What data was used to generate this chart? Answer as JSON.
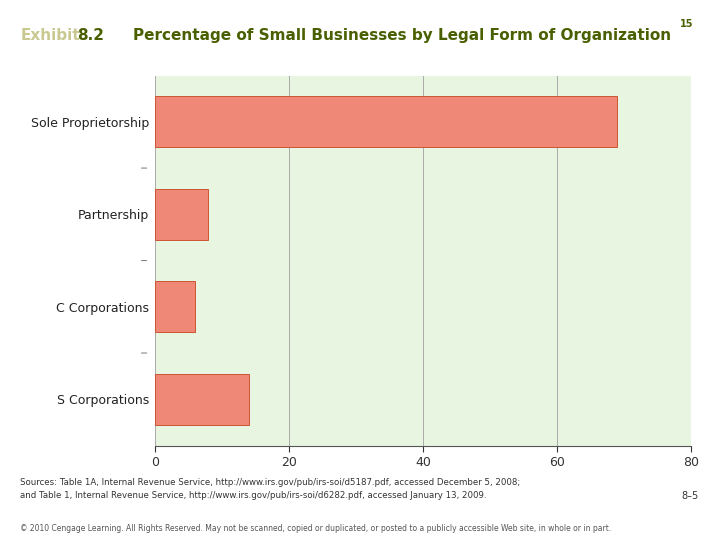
{
  "title_exhibit_word": "Exhibit",
  "title_exhibit_num": "8.2",
  "title_main": "Percentage of Small Businesses by Legal Form of Organization",
  "title_superscript": "15",
  "categories": [
    "Sole Proprietorship",
    "Partnership",
    "C Corporations",
    "S Corporations"
  ],
  "values": [
    69,
    8,
    6,
    14
  ],
  "bar_color": "#F08878",
  "bar_edge_color": "#CC5533",
  "plot_bg_color": "#E8F5E0",
  "fig_bg_color": "#FFFFFF",
  "xlim": [
    0,
    80
  ],
  "xticks": [
    0,
    20,
    40,
    60,
    80
  ],
  "title_color_exhibit_word": "#C8C890",
  "title_color_exhibit_num": "#4A6000",
  "title_color_main": "#4A6000",
  "separator_color": "#9B8B20",
  "footer_text1": "Sources: Table 1A, Internal Revenue Service, http://www.irs.gov/pub/irs-soi/d5187.pdf, accessed December 5, 2008;",
  "footer_text2": "and Table 1, Internal Revenue Service, http://www.irs.gov/pub/irs-soi/d6282.pdf, accessed January 13, 2009.",
  "copyright_text": "© 2010 Cengage Learning. All Rights Reserved. May not be scanned, copied or duplicated, or posted to a publicly accessible Web site, in whole or in part.",
  "page_ref": "8–5"
}
